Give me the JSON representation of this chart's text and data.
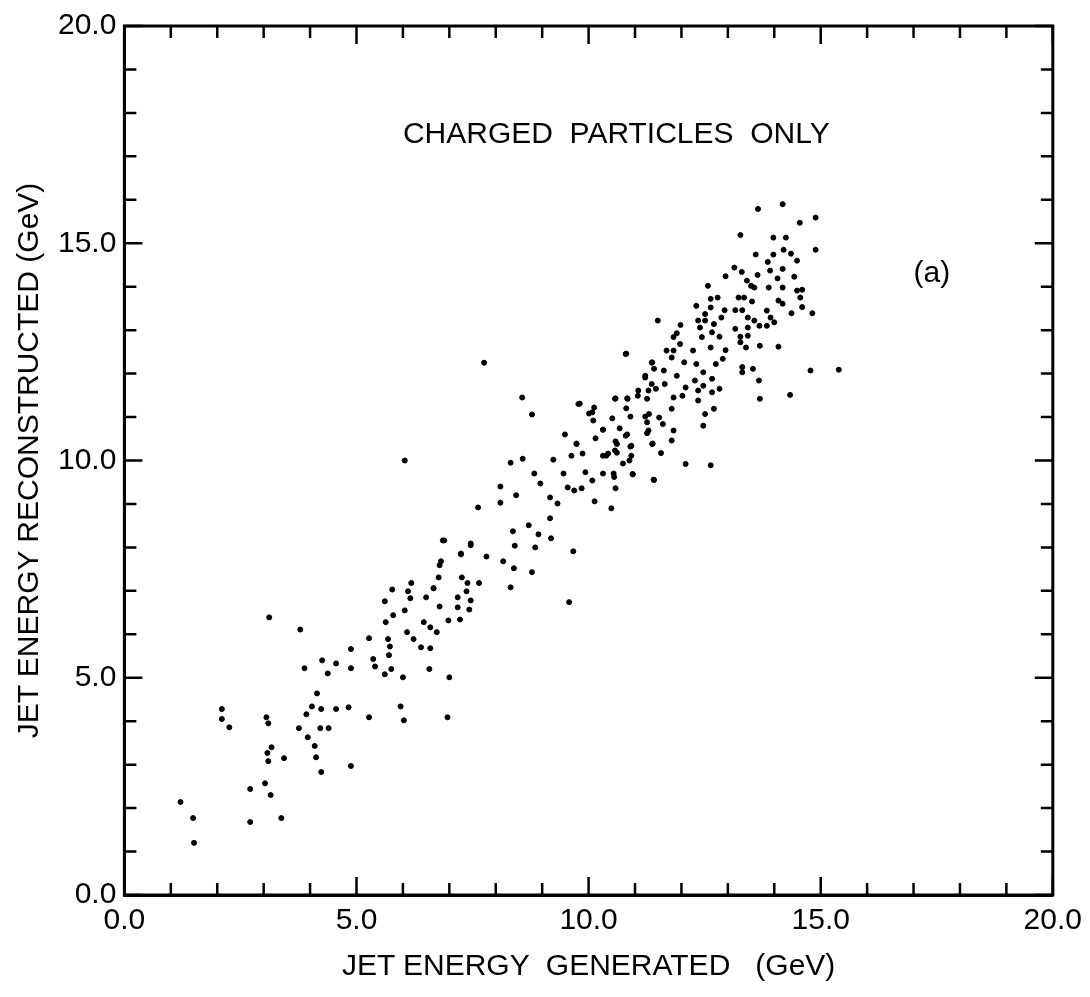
{
  "chart_data": {
    "type": "scatter",
    "xlabel": "JET ENERGY  GENERATED   (GeV)",
    "ylabel": "JET ENERGY RECONSTRUCTED (GeV)",
    "annotations": [
      "CHARGED  PARTICLES  ONLY",
      "(a)"
    ],
    "xlim": [
      0,
      20
    ],
    "ylim": [
      0,
      20
    ],
    "xticks": [
      {
        "value": 0,
        "label": "0.0"
      },
      {
        "value": 1,
        "label": null
      },
      {
        "value": 2,
        "label": null
      },
      {
        "value": 3,
        "label": null
      },
      {
        "value": 4,
        "label": null
      },
      {
        "value": 5,
        "label": "5.0"
      },
      {
        "value": 6,
        "label": null
      },
      {
        "value": 7,
        "label": null
      },
      {
        "value": 8,
        "label": null
      },
      {
        "value": 9,
        "label": null
      },
      {
        "value": 10,
        "label": "10.0"
      },
      {
        "value": 11,
        "label": null
      },
      {
        "value": 12,
        "label": null
      },
      {
        "value": 13,
        "label": null
      },
      {
        "value": 14,
        "label": null
      },
      {
        "value": 15,
        "label": "15.0"
      },
      {
        "value": 16,
        "label": null
      },
      {
        "value": 17,
        "label": null
      },
      {
        "value": 18,
        "label": null
      },
      {
        "value": 19,
        "label": null
      },
      {
        "value": 20,
        "label": "20.0"
      }
    ],
    "yticks": [
      {
        "value": 0,
        "label": "0.0"
      },
      {
        "value": 1,
        "label": null
      },
      {
        "value": 2,
        "label": null
      },
      {
        "value": 3,
        "label": null
      },
      {
        "value": 4,
        "label": null
      },
      {
        "value": 5,
        "label": "5.0"
      },
      {
        "value": 6,
        "label": null
      },
      {
        "value": 7,
        "label": null
      },
      {
        "value": 8,
        "label": null
      },
      {
        "value": 9,
        "label": null
      },
      {
        "value": 10,
        "label": "10.0"
      },
      {
        "value": 11,
        "label": null
      },
      {
        "value": 12,
        "label": null
      },
      {
        "value": 13,
        "label": null
      },
      {
        "value": 14,
        "label": null
      },
      {
        "value": 15,
        "label": "15.0"
      },
      {
        "value": 16,
        "label": null
      },
      {
        "value": 17,
        "label": null
      },
      {
        "value": 18,
        "label": null
      },
      {
        "value": 19,
        "label": null
      },
      {
        "value": 20,
        "label": "20.0"
      }
    ],
    "grid": false,
    "legend": false,
    "marker": "circle",
    "series": [
      {
        "color": "#000000",
        "x": [
          1.21,
          1.48,
          1.5,
          2.1,
          2.1,
          2.26,
          2.71,
          2.71,
          3.03,
          3.15,
          3.38,
          3.06,
          3.1,
          3.12,
          3.17,
          3.08,
          3.1,
          3.44,
          3.79,
          3.88,
          3.76,
          3.95,
          4.1,
          4.13,
          4.24,
          3.92,
          4.04,
          4.15,
          4.24,
          4.22,
          4.4,
          4.26,
          4.38,
          4.56,
          4.56,
          4.83,
          4.88,
          4.88,
          4.88,
          5.27,
          5.27,
          5.36,
          5.4,
          5.61,
          5.75,
          5.61,
          5.77,
          5.7,
          5.72,
          5.68,
          5.63,
          5.79,
          5.95,
          6.02,
          6.0,
          6.04,
          6.11,
          6.18,
          6.16,
          6.09,
          6.23,
          6.39,
          6.59,
          6.57,
          6.5,
          6.45,
          6.59,
          6.73,
          6.66,
          6.79,
          6.89,
          6.79,
          6.98,
          7.0,
          6.96,
          7.23,
          7.18,
          7.25,
          7.46,
          7.39,
          7.37,
          7.43,
          6.04,
          7.75,
          8.57,
          8.78,
          9.58,
          9.67,
          8.78,
          8.32,
          8.39,
          8.16,
          7.62,
          8.1,
          8.32,
          8.58,
          8.1,
          8.44,
          8.83,
          8.96,
          9.24,
          9.46,
          9.17,
          9.33,
          9.17,
          8.71,
          8.92,
          9.19,
          8.85,
          8.37,
          8.41,
          7.8,
          7.46,
          6.86,
          7.25,
          7.27,
          7.18,
          7.46,
          6.82,
          6.66,
          6.77,
          7.64,
          9.55,
          9.69,
          9.85,
          10.08,
          10.13,
          10.49,
          10.58,
          10.54,
          10.31,
          10.38,
          10.61,
          10.9,
          10.92,
          10.95,
          10.74,
          9.87,
          9.63,
          9.74,
          9.49,
          10.15,
          10.31,
          10.58,
          10.67,
          10.83,
          10.51,
          10.01,
          10.1,
          10.12,
          9.81,
          10.58,
          10.83,
          10.81,
          10.9,
          10.81,
          11.36,
          11.22,
          11.29,
          11.22,
          11.29,
          11.38,
          11.4,
          11.06,
          14.18,
          13.65,
          14.55,
          14.89,
          13.27,
          13.98,
          14.25,
          14.89,
          14.36,
          14.49,
          14.2,
          13.98,
          13.6,
          13.86,
          14.18,
          13.91,
          13.14,
          13.3,
          12.95,
          13.64,
          14.07,
          14.43,
          13.41,
          13.5,
          13.57,
          12.57,
          13.88,
          14.18,
          14.49,
          14.6,
          14.09,
          14.18,
          14.56,
          14.82,
          14.6,
          14.37,
          13.84,
          13.92,
          14.0,
          13.84,
          13.68,
          13.57,
          13.43,
          13.31,
          13.16,
          13.52,
          13.35,
          13.23,
          13.43,
          13.16,
          13.27,
          13.43,
          13.27,
          13.39,
          13.69,
          14.09,
          12.78,
          12.63,
          12.32,
          12.63,
          12.51,
          12.86,
          12.93,
          12.7,
          12.51,
          12.36,
          12.4,
          11.98,
          12.66,
          12.82,
          11.9,
          11.83,
          12.44,
          11.97,
          11.68,
          11.83,
          12.63,
          12.95,
          12.25,
          12.06,
          11.79,
          12.32,
          12.47,
          12.74,
          12.89,
          12.29,
          12.47,
          12.66,
          12.82,
          12.66,
          12.36,
          12.36,
          12.09,
          11.9,
          11.62,
          11.41,
          11.37,
          11.36,
          11.45,
          11.64,
          11.22,
          11.07,
          11.26,
          10.84,
          10.57,
          11.83,
          12.02,
          11.79,
          11.3,
          11.26,
          11.52,
          11.6,
          11.83,
          11.26,
          11.37,
          11.79,
          12.7,
          12.51,
          12.47,
          11.56,
          11.41,
          12.09,
          12.63,
          10.8,
          11.49,
          13.31,
          13.54,
          13.31,
          13.67,
          13.69,
          14.34,
          14.78,
          10.55,
          10.88,
          10.57,
          10.31,
          10.61,
          10.8,
          10.31,
          10.08,
          9.78,
          10.92,
          10.95,
          9.74,
          9.93,
          10.42,
          15.39
        ],
        "values": [
          2.14,
          1.77,
          1.2,
          4.28,
          4.05,
          3.86,
          2.44,
          1.68,
          2.57,
          2.3,
          1.77,
          4.09,
          3.95,
          6.39,
          3.4,
          3.27,
          3.08,
          3.15,
          6.11,
          5.22,
          3.84,
          3.63,
          3.43,
          3.17,
          2.83,
          4.16,
          4.34,
          4.64,
          4.28,
          3.84,
          3.84,
          5.4,
          5.1,
          5.33,
          4.28,
          4.32,
          5.66,
          5.22,
          2.97,
          4.09,
          5.91,
          5.43,
          5.26,
          5.08,
          5.2,
          6.76,
          7.03,
          5.52,
          5.72,
          5.89,
          6.28,
          6.44,
          4.34,
          4.02,
          5.01,
          6.55,
          6.99,
          7.18,
          6.83,
          6.05,
          5.89,
          5.7,
          5.68,
          5.2,
          6.85,
          6.28,
          6.16,
          6.05,
          7.06,
          7.59,
          8.16,
          6.64,
          6.32,
          5.01,
          4.09,
          6.34,
          6.62,
          7.84,
          8.05,
          7.18,
          6.99,
          6.57,
          10.0,
          12.25,
          11.45,
          11.06,
          6.74,
          7.91,
          7.43,
          7.08,
          7.52,
          7.68,
          8.92,
          9.03,
          9.95,
          10.04,
          9.4,
          9.2,
          9.7,
          9.47,
          10.02,
          9.7,
          9.15,
          9.01,
          8.67,
          8.51,
          8.3,
          8.21,
          8.0,
          8.37,
          8.04,
          7.79,
          8.09,
          8.16,
          7.86,
          7.31,
          6.85,
          6.78,
          7.68,
          7.06,
          7.31,
          7.18,
          9.38,
          9.31,
          9.36,
          9.54,
          9.06,
          8.9,
          9.36,
          9.7,
          9.7,
          10.11,
          10.18,
          10.32,
          10.11,
          9.68,
          9.93,
          10.16,
          10.11,
          10.39,
          10.6,
          10.51,
          10.71,
          10.44,
          10.74,
          10.6,
          10.97,
          11.08,
          10.92,
          11.22,
          11.31,
          11.43,
          11.43,
          11.2,
          11.01,
          12.46,
          12.25,
          11.91,
          11.61,
          11.01,
          10.69,
          10.39,
          9.56,
          11.49,
          15.9,
          15.79,
          15.47,
          15.59,
          15.19,
          15.13,
          15.13,
          14.85,
          14.76,
          14.6,
          14.85,
          14.74,
          14.74,
          14.57,
          14.41,
          14.37,
          14.44,
          14.34,
          14.24,
          14.27,
          14.19,
          14.23,
          14.14,
          14.02,
          13.98,
          14.02,
          13.98,
          13.98,
          13.91,
          13.93,
          13.68,
          13.61,
          13.75,
          13.39,
          13.53,
          13.39,
          13.45,
          13.29,
          13.18,
          13.1,
          13.1,
          13.22,
          13.29,
          13.46,
          13.46,
          13.66,
          13.75,
          13.75,
          13.06,
          13.03,
          12.85,
          12.87,
          12.72,
          12.6,
          12.64,
          12.62,
          13.75,
          13.72,
          13.56,
          13.52,
          13.37,
          13.29,
          13.46,
          13.14,
          13.22,
          13.22,
          13.06,
          13.12,
          12.95,
          12.85,
          12.93,
          12.84,
          12.84,
          12.68,
          12.53,
          12.53,
          12.6,
          12.54,
          12.53,
          12.26,
          12.37,
          12.22,
          12.03,
          12.22,
          12.34,
          11.84,
          11.72,
          11.88,
          11.65,
          11.57,
          11.61,
          11.38,
          11.68,
          11.95,
          12.07,
          12.11,
          12.26,
          11.76,
          11.65,
          11.76,
          11.95,
          11.61,
          11.42,
          11.42,
          11.42,
          11.45,
          11.49,
          11.19,
          11.07,
          10.88,
          10.99,
          10.84,
          10.69,
          10.63,
          10.38,
          10.46,
          11.19,
          11.07,
          10.8,
          10.17,
          9.55,
          9.92,
          9.89,
          12.45,
          13.22,
          12.15,
          12.11,
          12.03,
          11.84,
          11.42,
          11.51,
          12.07,
          9.62,
          10.0,
          10.23,
          10.11,
          10.38,
          10.57,
          10.71,
          11.11,
          11.3,
          10.34,
          9.69,
          10.38,
          9.73,
          10.16,
          12.09
        ]
      }
    ]
  }
}
